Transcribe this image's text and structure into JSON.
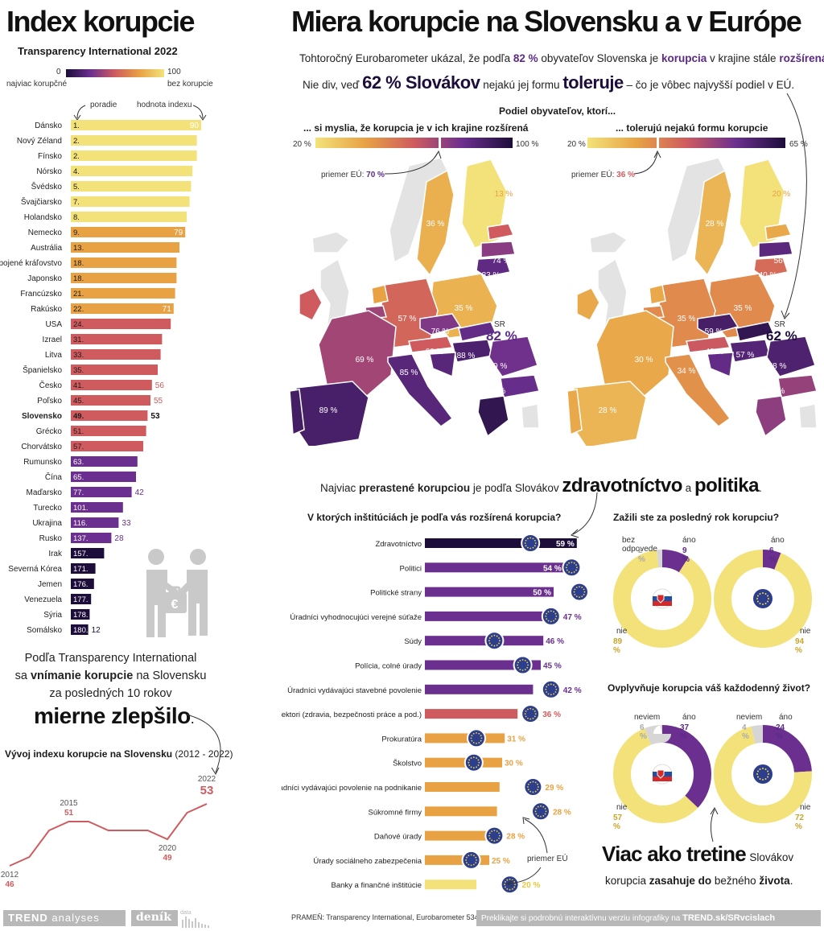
{
  "left": {
    "title": "Index korupcie",
    "subtitle": "Transparency International 2022",
    "legend": {
      "min": "0",
      "max": "100",
      "min_label": "najviac korupčné",
      "max_label": "bez korupcie"
    },
    "col_rank_label": "poradie",
    "col_value_label": "hodnota indexu",
    "summary_line1": "Podľa Transparency International",
    "summary_line2_a": "sa",
    "summary_line2_b": "vnímanie korupcie",
    "summary_line2_c": "na Slovensku",
    "summary_line3": "za posledných 10 rokov",
    "summary_big": "mierne zlepšilo",
    "summary_dot": ".",
    "trend_title_bold": "Vývoj indexu korupcie na Slovensku",
    "trend_title_rest": "(2012 - 2022)"
  },
  "header": {
    "title": "Miera korupcie na Slovensku a v Európe",
    "line1_a": "Tohtoročný Eurobarometer ukázal, že podľa",
    "line1_pct": "82 %",
    "line1_b": "obyvateľov Slovenska je",
    "line1_c": "korupcia",
    "line1_d": "v krajine stále",
    "line1_e": "rozšírená",
    "line1_f": ".",
    "line2_a": "Nie div, veď",
    "line2_big": "62 % Slovákov",
    "line2_b": "nejakú jej formu",
    "line2_c": "toleruje",
    "line2_d": "– čo je vôbec najvyšší podiel v EÚ."
  },
  "maps": {
    "heading": "Podiel obyvateľov, ktorí...",
    "left": {
      "title": "... si myslia, že korupcia je v ich krajine rozšírená",
      "min": "20 %",
      "max": "100 %",
      "eu_label": "priemer EÚ:",
      "eu_value": "70 %",
      "sr_label": "SR",
      "sr_value": "82 %"
    },
    "right": {
      "title": "... tolerujú nejakú formu korupcie",
      "min": "20 %",
      "max": "65 %",
      "eu_label": "priemer EÚ:",
      "eu_value": "36 %",
      "sr_label": "SR",
      "sr_value": "62 %"
    }
  },
  "institutions": {
    "intro_a": "Najviac",
    "intro_b": "prerastené korupciou",
    "intro_c": "je podľa Slovákov",
    "intro_d": "zdravotníctvo",
    "intro_e": "a",
    "intro_f": "politika",
    "intro_g": ".",
    "title": "V ktorých inštitúciách je podľa vás rozšírená korupcia?",
    "eu_note": "priemer EÚ"
  },
  "donuts": {
    "q1": "Zažili ste za posledný rok korupciu?",
    "q2": "Ovplyvňuje korupcia váš každodenný život?",
    "q1_sk": {
      "no_answer_label": "bez odpovede",
      "no_answer_value": "2 %",
      "yes_label": "áno",
      "yes_value": "9 %",
      "no_label": "nie",
      "no_value": "89 %"
    },
    "q1_eu": {
      "yes_label": "áno",
      "yes_value": "6 %",
      "no_label": "nie",
      "no_value": "94 %"
    },
    "q2_sk": {
      "dk_label": "neviem",
      "dk_value": "6 %",
      "yes_label": "áno",
      "yes_value": "37 %",
      "no_label": "nie",
      "no_value": "57 %"
    },
    "q2_eu": {
      "dk_label": "neviem",
      "dk_value": "4 %",
      "yes_label": "áno",
      "yes_value": "24 %",
      "no_label": "nie",
      "no_value": "72 %"
    },
    "concl_big": "Viac ako tretine",
    "concl_a": "Slovákov",
    "concl_b": "korupcia",
    "concl_c": "zasahuje do",
    "concl_d": "bežného",
    "concl_e": "života",
    "concl_f": "."
  },
  "footer": {
    "brand1": "TREND",
    "brand1_b": "analyses",
    "brand2": "deník",
    "brand2_b": "data",
    "source": "PRAMEŇ: Transparency International, Eurobarometer 534 (apríl 2023)",
    "cta_a": "Preklikajte si podrobnú interaktívnu verziu infografiky na",
    "cta_b": "TREND.sk/SRvcislach"
  },
  "colors": {
    "yellow": "#f3e27a",
    "orange": "#e8a244",
    "red": "#cf5b5f",
    "purple": "#6b2f8f",
    "dark": "#1d0d3a",
    "eu_blue": "#2c3e8c",
    "gray": "#d6d6d6"
  },
  "chart_data": [
    {
      "type": "bar",
      "name": "cpi",
      "title": "Index korupcie",
      "categories": [
        "Dánsko",
        "Nový Zéland",
        "Fínsko",
        "Nórsko",
        "Švédsko",
        "Švajčiarsko",
        "Holandsko",
        "Nemecko",
        "Austrália",
        "Spojené kráľovstvo",
        "Japonsko",
        "Francúzsko",
        "Rakúsko",
        "USA",
        "Izrael",
        "Litva",
        "Španielsko",
        "Česko",
        "Poľsko",
        "Slovensko",
        "Grécko",
        "Chorvátsko",
        "Rumunsko",
        "Čína",
        "Maďarsko",
        "Turecko",
        "Ukrajina",
        "Rusko",
        "Irak",
        "Severná Kórea",
        "Jemen",
        "Venezuela",
        "Sýria",
        "Somálsko"
      ],
      "ranks": [
        "1.",
        "2.",
        "2.",
        "4.",
        "5.",
        "7.",
        "8.",
        "9.",
        "13.",
        "18.",
        "18.",
        "21.",
        "22.",
        "24.",
        "31.",
        "33.",
        "35.",
        "41.",
        "45.",
        "49.",
        "51.",
        "57.",
        "63.",
        "65.",
        "77.",
        "101.",
        "116.",
        "137.",
        "157.",
        "171.",
        "176.",
        "177.",
        "178.",
        "180."
      ],
      "values": [
        90,
        87,
        87,
        84,
        83,
        82,
        80,
        79,
        75,
        73,
        73,
        72,
        71,
        69,
        63,
        62,
        60,
        56,
        55,
        53,
        52,
        50,
        46,
        45,
        42,
        36,
        33,
        28,
        23,
        17,
        16,
        14,
        13,
        12
      ],
      "labels": [
        "90",
        "",
        "",
        "",
        "",
        "",
        "",
        "79",
        "",
        "",
        "",
        "",
        "71",
        "",
        "",
        "",
        "",
        "56",
        "55",
        "53",
        "",
        "",
        "",
        "",
        "42",
        "",
        "33",
        "28",
        "",
        "",
        "",
        "",
        "",
        "12"
      ],
      "xlim": [
        0,
        100
      ]
    },
    {
      "type": "line",
      "name": "sk-trend",
      "x": [
        2012,
        2013,
        2014,
        2015,
        2016,
        2017,
        2018,
        2019,
        2020,
        2021,
        2022
      ],
      "y": [
        46,
        47,
        50,
        51,
        51,
        50,
        50,
        50,
        49,
        52,
        53
      ],
      "labels": [
        {
          "year": "2012",
          "value": "46"
        },
        {
          "year": "2015",
          "value": "51"
        },
        {
          "year": "2020",
          "value": "49"
        },
        {
          "year": "2022",
          "value": "53"
        }
      ]
    },
    {
      "type": "bar",
      "name": "institutions",
      "categories": [
        "Zdravotníctvo",
        "Politici",
        "Politické strany",
        "Úradníci vyhodnocujúci verejné súťaže",
        "Súdy",
        "Polícia, colné úrady",
        "Úradníci vydávajúci stavebné povolenie",
        "Inšpektori (zdravia, bezpečnosti práce a pod.)",
        "Prokuratúra",
        "Školstvo",
        "Úradníci vydávajúci povolenie na podnikanie",
        "Súkromné firmy",
        "Daňové úrady",
        "Úrady sociálneho zabezpečenia",
        "Banky a finančné inštitúcie"
      ],
      "series": [
        {
          "name": "SR",
          "values": [
            59,
            54,
            50,
            47,
            46,
            45,
            42,
            36,
            31,
            30,
            29,
            28,
            28,
            25,
            20
          ]
        },
        {
          "name": "priemer EÚ",
          "values": [
            41,
            57,
            60,
            49,
            27,
            38,
            49,
            41,
            20,
            19,
            42,
            45,
            27,
            18,
            33
          ]
        }
      ],
      "labels": [
        "59 %",
        "54 %",
        "50 %",
        "47 %",
        "46 %",
        "45 %",
        "42 %",
        "36 %",
        "31 %",
        "30 %",
        "29 %",
        "28 %",
        "28 %",
        "25 %",
        "20 %"
      ]
    },
    {
      "type": "pie",
      "name": "q1",
      "series": [
        {
          "name": "SR",
          "values": {
            "áno": 9,
            "nie": 89,
            "bez odpovede": 2
          }
        },
        {
          "name": "EÚ",
          "values": {
            "áno": 6,
            "nie": 94
          }
        }
      ]
    },
    {
      "type": "pie",
      "name": "q2",
      "series": [
        {
          "name": "SR",
          "values": {
            "áno": 37,
            "nie": 57,
            "neviem": 6
          }
        },
        {
          "name": "EÚ",
          "values": {
            "áno": 24,
            "nie": 72,
            "neviem": 4
          }
        }
      ]
    }
  ]
}
